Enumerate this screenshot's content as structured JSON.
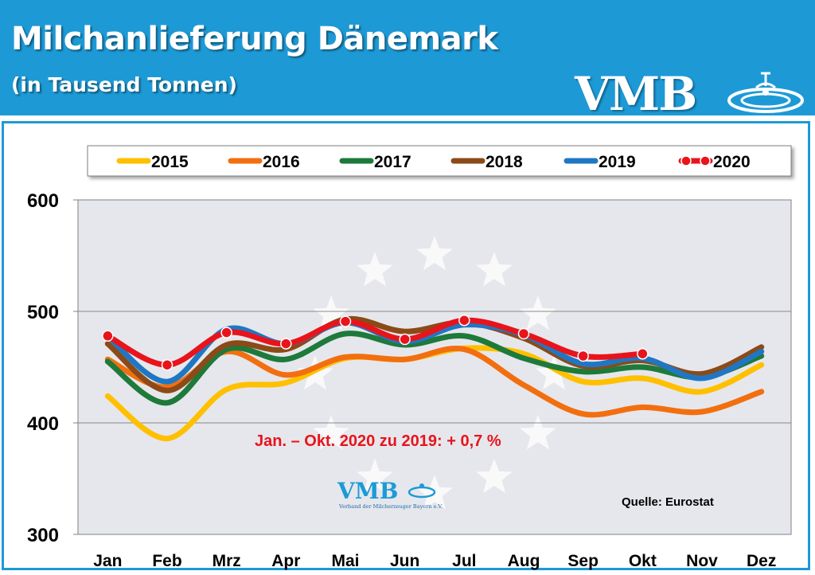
{
  "header": {
    "title": "Milchanlieferung Dänemark",
    "subtitle": "(in Tausend Tonnen)",
    "logo": "VMB"
  },
  "chart_data": {
    "type": "line",
    "title": "Milchanlieferung Dänemark",
    "subtitle": "(in Tausend Tonnen)",
    "xlabel": "",
    "ylabel": "",
    "categories": [
      "Jan",
      "Feb",
      "Mrz",
      "Apr",
      "Mai",
      "Jun",
      "Jul",
      "Aug",
      "Sep",
      "Okt",
      "Nov",
      "Dez"
    ],
    "ylim": [
      300,
      600
    ],
    "yticks": [
      300,
      400,
      500,
      600
    ],
    "grid": true,
    "legend_position": "top",
    "series": [
      {
        "name": "2015",
        "color": "#ffc000",
        "values": [
          424,
          386,
          430,
          436,
          458,
          457,
          467,
          462,
          437,
          440,
          428,
          452
        ]
      },
      {
        "name": "2016",
        "color": "#f26f10",
        "values": [
          457,
          432,
          464,
          443,
          459,
          457,
          466,
          434,
          408,
          414,
          410,
          428
        ]
      },
      {
        "name": "2017",
        "color": "#1e7a3a",
        "values": [
          455,
          418,
          466,
          457,
          480,
          470,
          478,
          458,
          446,
          450,
          441,
          460
        ]
      },
      {
        "name": "2018",
        "color": "#8b4a17",
        "values": [
          471,
          429,
          470,
          466,
          493,
          482,
          490,
          476,
          451,
          456,
          444,
          468
        ]
      },
      {
        "name": "2019",
        "color": "#1f77c4",
        "values": [
          478,
          437,
          484,
          471,
          490,
          473,
          488,
          479,
          453,
          458,
          440,
          464
        ]
      },
      {
        "name": "2020",
        "color": "#e8141b",
        "values": [
          478,
          452,
          481,
          471,
          491,
          475,
          492,
          480,
          460,
          462,
          null,
          null
        ],
        "markers": true
      }
    ],
    "annotations": [
      {
        "text": "Jan. – Okt. 2020 zu 2019:  + 0,7 %",
        "color": "#e8141b"
      },
      {
        "text": "Quelle:  Eurostat",
        "color": "#000000"
      }
    ]
  },
  "inner_logo": {
    "text": "VMB",
    "tagline": "Verband der Milcherzeuger Bayern e.V."
  },
  "colors": {
    "header_bg": "#1d9ad6",
    "plot_bg": "#e6e7ec",
    "star": "#ffffff"
  }
}
